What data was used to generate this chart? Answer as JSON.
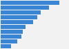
{
  "values": [
    100,
    82,
    68,
    62,
    55,
    42,
    38,
    35,
    28,
    18
  ],
  "bar_color": "#3a86d4",
  "background_color": "#f2f2f2",
  "plot_area_color": "#f2f2f2",
  "figsize": [
    1.0,
    0.71
  ],
  "dpi": 100,
  "bar_height": 0.82,
  "xlim_max": 115
}
